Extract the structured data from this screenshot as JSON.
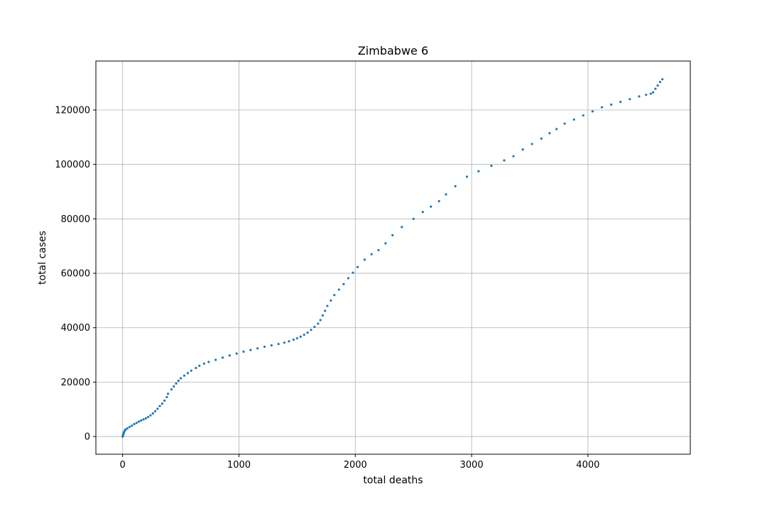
{
  "chart_data": {
    "type": "scatter",
    "title": "Zimbabwe 6",
    "xlabel": "total deaths",
    "ylabel": "total cases",
    "xlim": [
      -230,
      4880
    ],
    "ylim": [
      -6500,
      138000
    ],
    "xticks": [
      0,
      1000,
      2000,
      3000,
      4000
    ],
    "xtick_labels": [
      "0",
      "1000",
      "2000",
      "3000",
      "4000"
    ],
    "yticks": [
      0,
      20000,
      40000,
      60000,
      80000,
      100000,
      120000
    ],
    "ytick_labels": [
      "0",
      "20000",
      "40000",
      "60000",
      "80000",
      "100000",
      "120000"
    ],
    "grid": true,
    "marker_color": "#1f77b4",
    "series": [
      {
        "points": [
          [
            0,
            0
          ],
          [
            1,
            100
          ],
          [
            3,
            300
          ],
          [
            4,
            700
          ],
          [
            8,
            1000
          ],
          [
            12,
            1600
          ],
          [
            18,
            2100
          ],
          [
            25,
            2600
          ],
          [
            40,
            3000
          ],
          [
            60,
            3500
          ],
          [
            80,
            4000
          ],
          [
            100,
            4600
          ],
          [
            120,
            5000
          ],
          [
            140,
            5500
          ],
          [
            160,
            5900
          ],
          [
            180,
            6300
          ],
          [
            200,
            6700
          ],
          [
            220,
            7200
          ],
          [
            240,
            7800
          ],
          [
            260,
            8500
          ],
          [
            280,
            9300
          ],
          [
            300,
            10200
          ],
          [
            320,
            11200
          ],
          [
            340,
            12100
          ],
          [
            360,
            13200
          ],
          [
            380,
            14500
          ],
          [
            390,
            15700
          ],
          [
            420,
            17300
          ],
          [
            440,
            18400
          ],
          [
            460,
            19500
          ],
          [
            480,
            20500
          ],
          [
            500,
            21400
          ],
          [
            530,
            22400
          ],
          [
            560,
            23300
          ],
          [
            590,
            24200
          ],
          [
            630,
            25200
          ],
          [
            660,
            26000
          ],
          [
            700,
            26800
          ],
          [
            740,
            27400
          ],
          [
            800,
            28200
          ],
          [
            860,
            29000
          ],
          [
            920,
            29800
          ],
          [
            980,
            30500
          ],
          [
            1040,
            31200
          ],
          [
            1100,
            31800
          ],
          [
            1160,
            32400
          ],
          [
            1220,
            33000
          ],
          [
            1280,
            33500
          ],
          [
            1340,
            34000
          ],
          [
            1390,
            34500
          ],
          [
            1430,
            35000
          ],
          [
            1470,
            35600
          ],
          [
            1500,
            36100
          ],
          [
            1530,
            36700
          ],
          [
            1560,
            37400
          ],
          [
            1590,
            38200
          ],
          [
            1620,
            39200
          ],
          [
            1650,
            40300
          ],
          [
            1680,
            41500
          ],
          [
            1700,
            42800
          ],
          [
            1720,
            44500
          ],
          [
            1740,
            46200
          ],
          [
            1760,
            48000
          ],
          [
            1790,
            50000
          ],
          [
            1820,
            52000
          ],
          [
            1860,
            54000
          ],
          [
            1900,
            56000
          ],
          [
            1940,
            58200
          ],
          [
            1980,
            60200
          ],
          [
            2020,
            62300
          ],
          [
            2080,
            65000
          ],
          [
            2140,
            67000
          ],
          [
            2200,
            68500
          ],
          [
            2260,
            71000
          ],
          [
            2320,
            74000
          ],
          [
            2400,
            77000
          ],
          [
            2500,
            80000
          ],
          [
            2580,
            82500
          ],
          [
            2650,
            84500
          ],
          [
            2720,
            86500
          ],
          [
            2780,
            89000
          ],
          [
            2860,
            92000
          ],
          [
            2960,
            95500
          ],
          [
            3060,
            97500
          ],
          [
            3170,
            99500
          ],
          [
            3280,
            101500
          ],
          [
            3360,
            103000
          ],
          [
            3440,
            105500
          ],
          [
            3520,
            107500
          ],
          [
            3600,
            109500
          ],
          [
            3670,
            111500
          ],
          [
            3730,
            113000
          ],
          [
            3800,
            115000
          ],
          [
            3880,
            116500
          ],
          [
            3960,
            118000
          ],
          [
            4040,
            119500
          ],
          [
            4120,
            121000
          ],
          [
            4200,
            122000
          ],
          [
            4280,
            123000
          ],
          [
            4360,
            124000
          ],
          [
            4440,
            125000
          ],
          [
            4500,
            125600
          ],
          [
            4540,
            126000
          ],
          [
            4560,
            126500
          ],
          [
            4580,
            127800
          ],
          [
            4600,
            129000
          ],
          [
            4620,
            130300
          ],
          [
            4640,
            131300
          ]
        ]
      }
    ]
  }
}
